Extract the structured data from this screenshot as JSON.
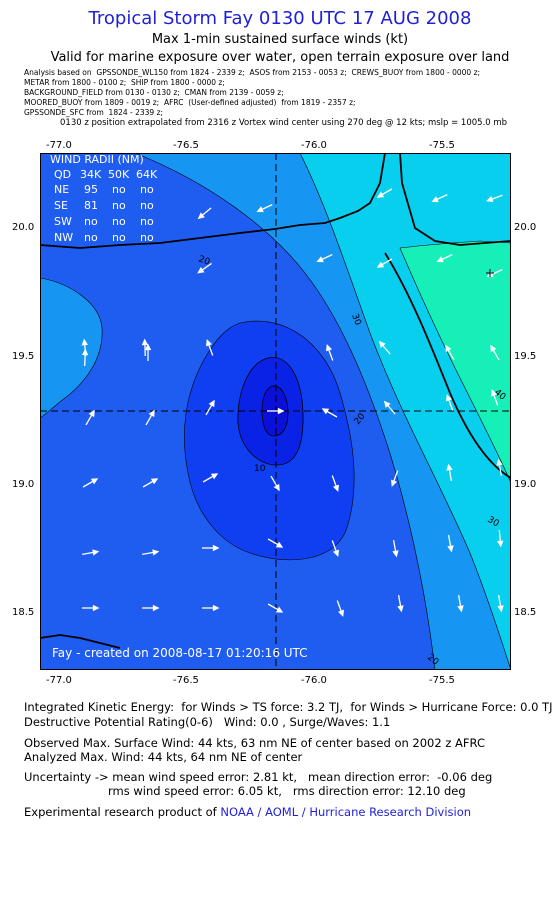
{
  "header": {
    "title": "Tropical Storm Fay 0130 UTC 17 AUG 2008",
    "line1": "Max 1-min sustained surface winds (kt)",
    "line2": "Valid for marine exposure over water, open terrain exposure over land"
  },
  "analysis_sources": [
    "Analysis based on  GPSSONDE_WL150 from 1824 - 2339 z;  ASOS from 2153 - 0053 z;  CREWS_BUOY from 1800 - 0000 z;",
    "METAR from 1800 - 0100 z;  SHIP from 1800 - 0000 z;",
    "BACKGROUND_FIELD from 0130 - 0130 z;  CMAN from 2139 - 0059 z;",
    "MOORED_BUOY from 1809 - 0019 z;  AFRC  (User-defined adjusted)  from 1819 - 2357 z;",
    "GPSSONDE_SFC from  1824 - 2339 z;"
  ],
  "position_note": "0130 z position extrapolated from 2316 z Vortex wind center using 270 deg @ 12 kts; mslp = 1005.0 mb",
  "map": {
    "lon_ticks": [
      "-77.0",
      "-76.5",
      "-76.0",
      "-75.5"
    ],
    "lat_ticks": [
      "20.0",
      "19.5",
      "19.0",
      "18.5"
    ],
    "contour_labels": [
      "10",
      "20",
      "30",
      "40",
      "20",
      "30",
      "20"
    ],
    "credit": "Fay - created on 2008-08-17 01:20:16 UTC",
    "wind_radii": {
      "title": "WIND RADII (NM)",
      "columns": [
        "QD",
        "34K",
        "50K",
        "64K"
      ],
      "rows": [
        [
          "NE",
          "95",
          "no",
          "no"
        ],
        [
          "SE",
          "81",
          "no",
          "no"
        ],
        [
          "SW",
          "no",
          "no",
          "no"
        ],
        [
          "NW",
          "no",
          "no",
          "no"
        ]
      ]
    },
    "colors": {
      "band_0_10": "#0a22e6",
      "band_10_20": "#1f5cf0",
      "band_20_30": "#1696f2",
      "band_30_40": "#08cfee",
      "band_40_50": "#16f0b8",
      "land_line": "#000000"
    }
  },
  "stats": {
    "ike": "Integrated Kinetic Energy:  for Winds > TS force: 3.2 TJ,  for Winds > Hurricane Force: 0.0 TJ",
    "dpr": "Destructive Potential Rating(0-6)   Wind: 0.0 , Surge/Waves: 1.1",
    "observed": "Observed Max. Surface Wind: 44 kts, 63 nm NE of center based on 2002 z AFRC",
    "analyzed": "Analyzed Max. Wind: 44 kts, 64 nm NE of center",
    "uncertainty1": "Uncertainty -> mean wind speed error: 2.81 kt,   mean direction error:  -0.06 deg",
    "uncertainty2": "rms wind speed error: 6.05 kt,   rms direction error: 12.10 deg",
    "product_prefix": "Experimental research product of ",
    "product_org": "NOAA / AOML / Hurricane Research Division"
  }
}
